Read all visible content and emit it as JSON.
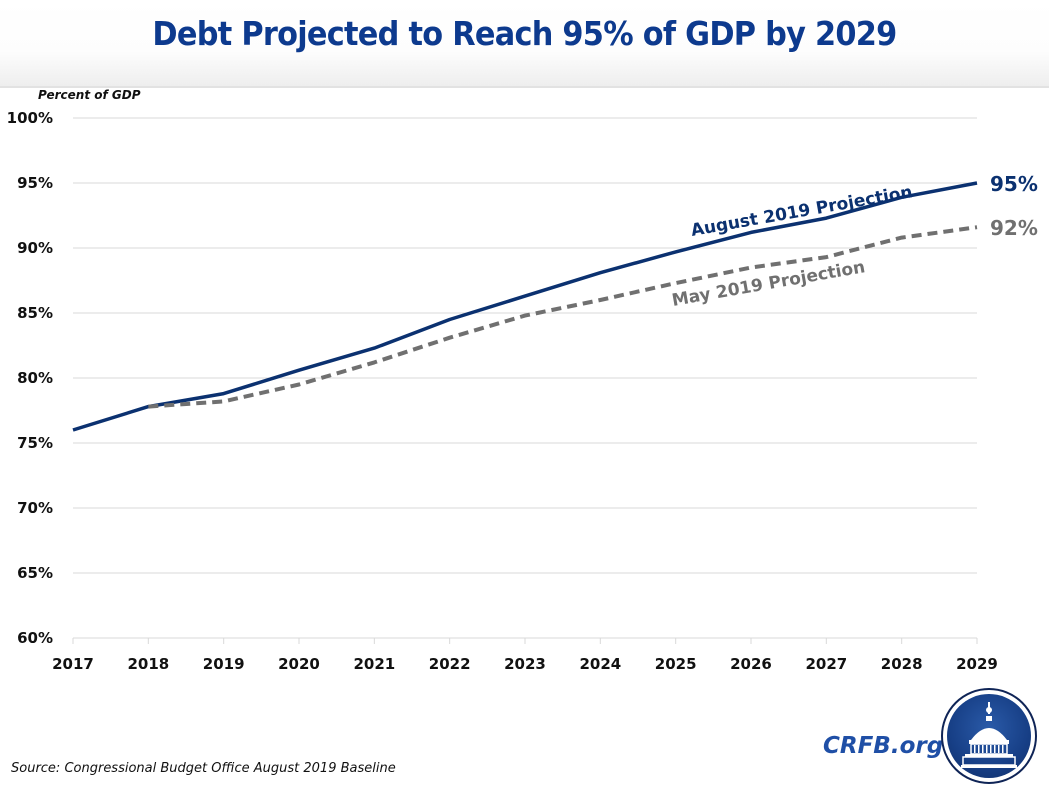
{
  "header": {
    "title": "Debt Projected to Reach 95% of GDP by 2029"
  },
  "footer": {
    "source": "Source: Congressional Budget Office August 2019 Baseline",
    "brand": "CRFB.org",
    "logo_icon": "capitol-dome-seal-icon"
  },
  "colors": {
    "title": "#0d3a8e",
    "august": "#0b3170",
    "may": "#707070",
    "grid": "#d9d9d9",
    "brand": "#1f4fa6"
  },
  "chart_data": {
    "type": "line",
    "title": "Debt Projected to Reach 95% of GDP by 2029",
    "ylabel": "Percent of GDP",
    "xlabel": "",
    "x": [
      2017,
      2018,
      2019,
      2020,
      2021,
      2022,
      2023,
      2024,
      2025,
      2026,
      2027,
      2028,
      2029
    ],
    "x_tick_labels": [
      "2017",
      "2018",
      "2019",
      "2020",
      "2021",
      "2022",
      "2023",
      "2024",
      "2025",
      "2026",
      "2027",
      "2028",
      "2029"
    ],
    "ylim": [
      60,
      100
    ],
    "y_ticks": [
      60,
      65,
      70,
      75,
      80,
      85,
      90,
      95,
      100
    ],
    "y_tick_labels": [
      "60%",
      "65%",
      "70%",
      "75%",
      "80%",
      "85%",
      "90%",
      "95%",
      "100%"
    ],
    "grid": true,
    "series": [
      {
        "name": "August 2019 Projection",
        "style": "solid",
        "x": [
          2017,
          2018,
          2019,
          2020,
          2021,
          2022,
          2023,
          2024,
          2025,
          2026,
          2027,
          2028,
          2029
        ],
        "values": [
          76.0,
          77.8,
          78.8,
          80.6,
          82.3,
          84.5,
          86.3,
          88.1,
          89.7,
          91.2,
          92.3,
          93.9,
          95.0
        ],
        "end_label": "95%"
      },
      {
        "name": "May 2019 Projection",
        "style": "dashed",
        "x": [
          2018,
          2019,
          2020,
          2021,
          2022,
          2023,
          2024,
          2025,
          2026,
          2027,
          2028,
          2029
        ],
        "values": [
          77.8,
          78.2,
          79.5,
          81.2,
          83.1,
          84.8,
          86.0,
          87.3,
          88.5,
          89.3,
          90.8,
          91.6
        ],
        "end_label": "92%"
      }
    ],
    "annotations": [
      "August 2019 Projection",
      "May 2019 Projection",
      "95%",
      "92%"
    ]
  }
}
